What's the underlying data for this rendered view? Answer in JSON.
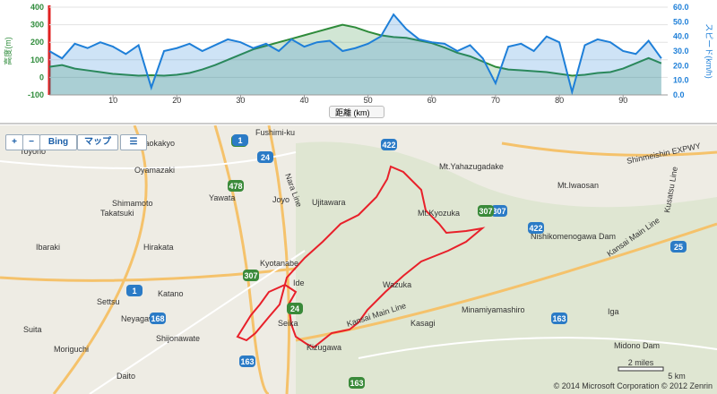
{
  "chart_data": {
    "type": "area",
    "x_label": "距離 (km)",
    "y_label": "高度(m)",
    "y2_label": "スピード(km/h)",
    "x": [
      0,
      2,
      4,
      6,
      8,
      10,
      12,
      14,
      16,
      18,
      20,
      22,
      24,
      26,
      28,
      30,
      32,
      34,
      36,
      38,
      40,
      42,
      44,
      46,
      48,
      50,
      52,
      54,
      56,
      58,
      60,
      62,
      64,
      66,
      68,
      70,
      72,
      74,
      76,
      78,
      80,
      82,
      84,
      86,
      88,
      90,
      92,
      94,
      96
    ],
    "series": [
      {
        "name": "高度",
        "color": "#2e8b3a",
        "values": [
          60,
          70,
          50,
          40,
          30,
          20,
          15,
          10,
          12,
          10,
          15,
          25,
          45,
          70,
          100,
          130,
          160,
          180,
          200,
          220,
          240,
          260,
          280,
          300,
          285,
          260,
          240,
          230,
          225,
          210,
          195,
          170,
          140,
          120,
          90,
          60,
          45,
          40,
          35,
          30,
          20,
          10,
          15,
          25,
          30,
          50,
          80,
          110,
          80
        ]
      },
      {
        "name": "スピード",
        "color": "#1e7fd8",
        "axis": "y2",
        "values": [
          30,
          25,
          35,
          32,
          36,
          33,
          28,
          34,
          5,
          30,
          32,
          35,
          30,
          34,
          38,
          36,
          32,
          35,
          30,
          38,
          33,
          36,
          37,
          30,
          32,
          35,
          40,
          55,
          45,
          38,
          36,
          35,
          30,
          34,
          25,
          8,
          33,
          35,
          30,
          40,
          36,
          2,
          34,
          38,
          36,
          30,
          28,
          37,
          25
        ]
      }
    ],
    "xlim": [
      0,
      97
    ],
    "xticks": [
      10,
      20,
      30,
      40,
      50,
      60,
      70,
      80,
      90
    ],
    "ylim": [
      -100,
      400
    ],
    "yticks": [
      -100,
      0,
      100,
      200,
      300,
      400
    ],
    "y2lim": [
      0,
      60
    ],
    "y2ticks": [
      {
        "value": 0,
        "label": "0.0"
      },
      {
        "value": 10,
        "label": "10.0"
      },
      {
        "value": 20,
        "label": "20.0"
      },
      {
        "value": 30,
        "label": "30.0"
      },
      {
        "value": 40,
        "label": "40.0"
      },
      {
        "value": 50,
        "label": "50.0"
      },
      {
        "value": 60,
        "label": "60.0"
      }
    ]
  },
  "map": {
    "controls": [
      "+",
      "−",
      "Bing",
      "マップ"
    ],
    "places": [
      "Toyono",
      "Nagaokakyo",
      "Fushimi-ku",
      "Oyamazaki",
      "Shimamoto",
      "Yawata",
      "Joyo",
      "Takatsuki",
      "Ujitawara",
      "Mt.Yahazugadake",
      "Mt.Iwaosan",
      "Mt.Kyozuka",
      "Shinmeishin EXPWY",
      "Kusatsu Line",
      "Nishikomenogawa Dam",
      "Ibaraki",
      "Hirakata",
      "Kyotanabe",
      "Kansai Main Line",
      "Settsu",
      "Katano",
      "Ide",
      "Wazuka",
      "Neyagawa",
      "Suita",
      "Shijonawate",
      "Seika",
      "Kasagi",
      "Minamiyamashiro",
      "Iga",
      "Moriguchi",
      "Kizugawa",
      "Midono Dam",
      "Daito",
      "Nara Line",
      "Kansai Main Line"
    ],
    "shields": [
      "171",
      "1",
      "24",
      "478",
      "422",
      "307",
      "307",
      "422",
      "25",
      "307",
      "1",
      "168",
      "24",
      "163",
      "163",
      "163"
    ],
    "scale": [
      "2 miles",
      "5 km"
    ],
    "copyright": "© 2014 Microsoft Corporation © 2012 Zenrin"
  }
}
